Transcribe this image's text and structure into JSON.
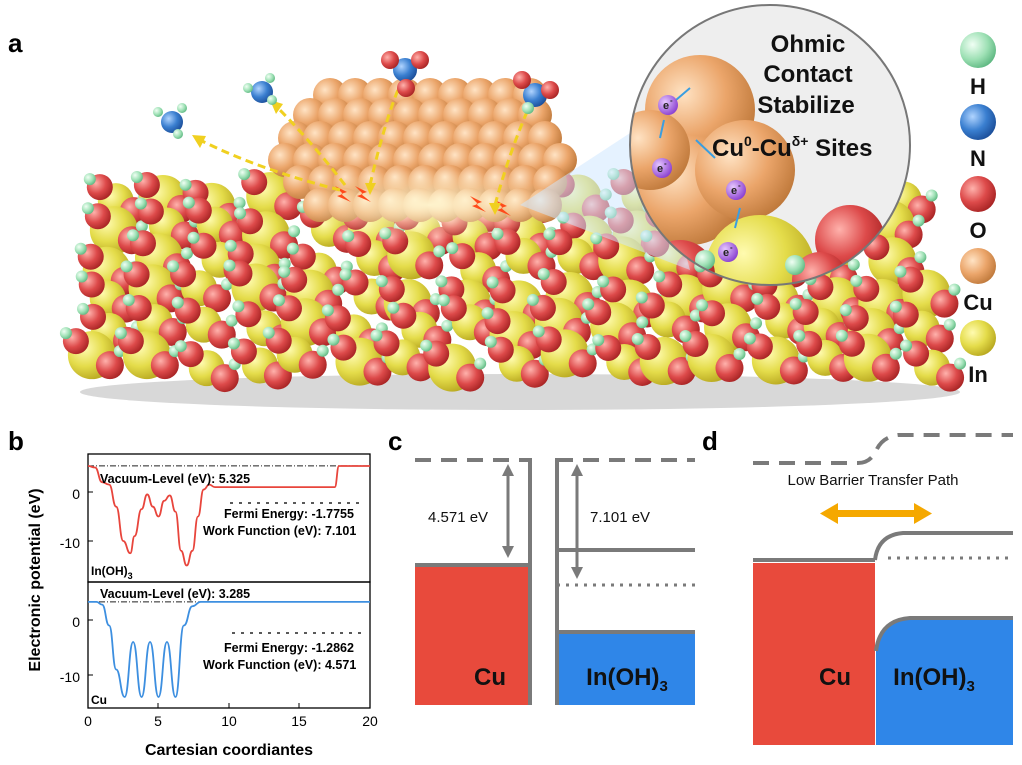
{
  "panels": {
    "a": "a",
    "b": "b",
    "c": "c",
    "d": "d"
  },
  "callout": {
    "line1": "Ohmic",
    "line2": "Contact",
    "line3": "Stabilize",
    "line4_cu0": "Cu",
    "line4_sup0": "0",
    "line4_mid": "-Cu",
    "line4_supd": "δ+",
    "line4_end": " Sites",
    "electron": "e",
    "electron_sup": "-"
  },
  "legend": {
    "items": [
      {
        "label": "H",
        "color": "#8fd9a8"
      },
      {
        "label": "N",
        "color": "#3a7fd0"
      },
      {
        "label": "O",
        "color": "#dd4a4a"
      },
      {
        "label": "Cu",
        "color": "#e8a56a"
      },
      {
        "label": "In",
        "color": "#e4dc5a"
      }
    ]
  },
  "chart": {
    "ylabel": "Electronic potential (eV)",
    "xlabel": "Cartesian coordiantes",
    "xticks": [
      "0",
      "5",
      "10",
      "15",
      "20"
    ],
    "top": {
      "yticks": [
        "0",
        "-10"
      ],
      "vacuum_label": "Vacuum-Level (eV): 5.325",
      "fermi_label": "Fermi Energy:  -1.7755",
      "wf_label": "Work Function (eV): 7.101",
      "material": "In(OH)",
      "material_sub": "3"
    },
    "bottom": {
      "yticks": [
        "0",
        "-10"
      ],
      "vacuum_label": "Vacuum-Level (eV): 3.285",
      "fermi_label": "Fermi Energy:  -1.2862",
      "wf_label": "Work Function (eV): 4.571",
      "material": "Cu"
    }
  },
  "chart_data": [
    {
      "type": "line",
      "title": "",
      "xlabel": "Cartesian coordiantes",
      "ylabel": "Electronic potential (eV)",
      "xlim": [
        0,
        20
      ],
      "ylim": [
        -15,
        7
      ],
      "series": [
        {
          "name": "In(OH)3",
          "x": [
            0,
            0.5,
            1.0,
            1.5,
            2.0,
            2.5,
            3.0,
            3.3,
            3.8,
            4.2,
            4.6,
            5.0,
            5.4,
            5.8,
            6.2,
            6.6,
            7.0,
            7.4,
            7.8,
            8.2,
            8.6,
            9.0,
            10,
            12,
            14,
            16,
            17.5,
            17.8,
            18.2,
            20
          ],
          "y": [
            5.3,
            5.0,
            2.0,
            1.5,
            -3.0,
            -10.0,
            -12.5,
            -9.0,
            -3.5,
            -0.5,
            -3.0,
            -5.0,
            -1.8,
            -0.7,
            -4.0,
            -12.0,
            -15.0,
            -12.0,
            -5.0,
            0.5,
            1.5,
            1.0,
            1.0,
            1.0,
            1.0,
            1.0,
            1.0,
            5.3,
            5.3,
            5.3
          ]
        },
        {
          "name": "Cu",
          "x": [
            0,
            0.6,
            1.0,
            1.5,
            2.0,
            2.6,
            3.2,
            3.8,
            4.4,
            5.0,
            5.6,
            6.2,
            6.8,
            7.4,
            8.0,
            9.0,
            10,
            12,
            14,
            16,
            18,
            20
          ],
          "y": [
            3.3,
            3.3,
            2.8,
            -1.0,
            -9.0,
            -14.0,
            -4.0,
            -14.0,
            -4.0,
            -14.0,
            -4.0,
            -14.0,
            -1.0,
            2.5,
            3.3,
            3.3,
            3.3,
            3.3,
            3.3,
            3.3,
            3.3,
            3.3
          ]
        }
      ]
    }
  ],
  "band_c": {
    "cu_wf": "4.571 eV",
    "inoh_wf": "7.101 eV",
    "cu_label": "Cu",
    "inoh_label": "In(OH)",
    "inoh_sub": "3"
  },
  "band_d": {
    "path_label": "Low Barrier Transfer Path",
    "cu_label": "Cu",
    "inoh_label": "In(OH)",
    "inoh_sub": "3"
  },
  "colors": {
    "cu_red": "#e84a3c",
    "inoh_blue": "#2f86e8",
    "arrow_orange": "#f5a800",
    "series_inoh": "#e8453c",
    "series_cu": "#3d8fe0",
    "line_gray": "#7a7a7a"
  }
}
